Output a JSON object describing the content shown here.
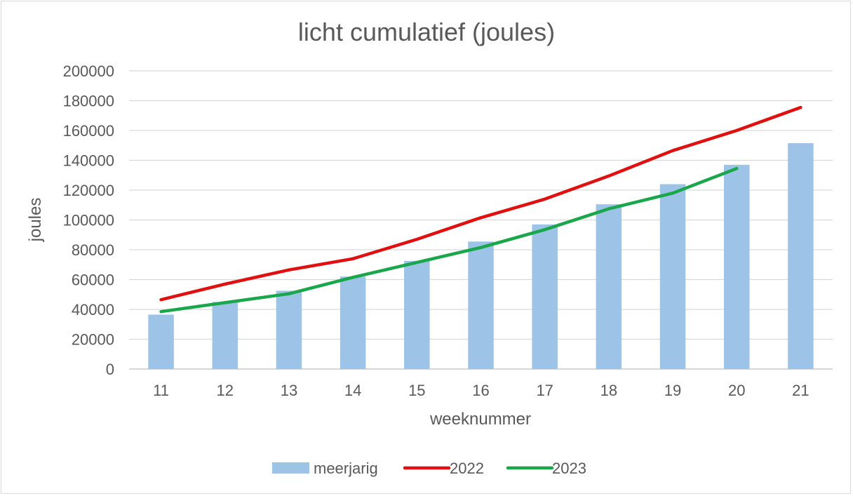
{
  "chart_data": {
    "type": "bar",
    "title": "licht cumulatief (joules)",
    "xlabel": "weeknummer",
    "ylabel": "joules",
    "ylim": [
      0,
      200000
    ],
    "yticks": [
      0,
      20000,
      40000,
      60000,
      80000,
      100000,
      120000,
      140000,
      160000,
      180000,
      200000
    ],
    "categories": [
      "11",
      "12",
      "13",
      "14",
      "15",
      "16",
      "17",
      "18",
      "19",
      "20",
      "21"
    ],
    "grid": true,
    "legend_position": "bottom",
    "series": [
      {
        "name": "meerjarig",
        "type": "bar",
        "color": "#9dc3e6",
        "values": [
          36500,
          45000,
          52500,
          62000,
          72500,
          85500,
          97000,
          110500,
          124000,
          137000,
          151500
        ]
      },
      {
        "name": "2022",
        "type": "line",
        "color": "#e01010",
        "values": [
          46500,
          57000,
          66500,
          74000,
          87000,
          101500,
          114000,
          129500,
          146500,
          160000,
          175500
        ]
      },
      {
        "name": "2023",
        "type": "line",
        "color": "#1aa64a",
        "values": [
          38500,
          44500,
          50500,
          61500,
          71500,
          81500,
          93500,
          107500,
          118000,
          134500,
          null
        ]
      }
    ]
  }
}
